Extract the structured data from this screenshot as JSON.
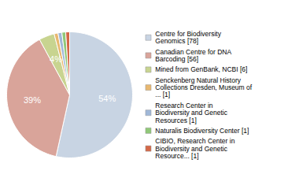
{
  "chart_data": {
    "type": "pie",
    "categories": [
      "Centre for Biodiversity\nGenomics [78]",
      "Canadian Centre for DNA\nBarcoding [56]",
      "Mined from GenBank, NCBI [6]",
      "Senckenberg Natural History\nCollections Dresden, Museum of\n... [1]",
      "Research Center in\nBiodiversity and Genetic\nResources [1]",
      "Naturalis Biodiversity Center [1]",
      "CIBIO, Research Center in\nBiodiversity and Genetic\nResource... [1]"
    ],
    "values": [
      54,
      39,
      4,
      1,
      1,
      1,
      1
    ],
    "value_labels": [
      "54%",
      "39%",
      "4%",
      null,
      null,
      null,
      null
    ],
    "colors": [
      "#c8d4e3",
      "#d9a49a",
      "#c8d490",
      "#e8b870",
      "#a0b8d8",
      "#90c878",
      "#d46848"
    ],
    "data_labels": true,
    "legend": "right"
  }
}
